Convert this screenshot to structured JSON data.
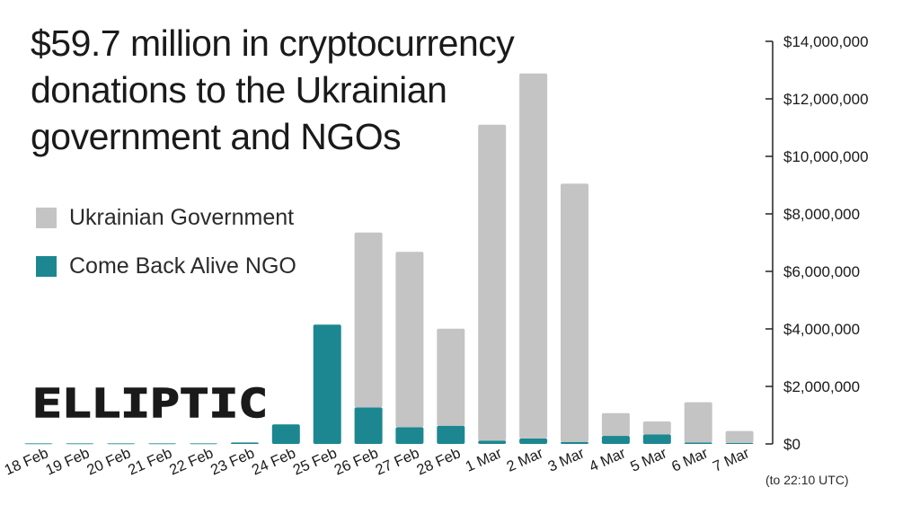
{
  "title": "$59.7 million in cryptocurrency donations to the Ukrainian government and NGOs",
  "note": "(to 22:10 UTC)",
  "logo_text": "ELLIPTIC",
  "colors": {
    "government": "#c4c4c4",
    "ngo": "#1c8790",
    "axis": "#222222",
    "text": "#1a1a1a"
  },
  "chart_data": {
    "type": "bar",
    "stacked": true,
    "categories": [
      "18 Feb",
      "19 Feb",
      "20 Feb",
      "21 Feb",
      "22 Feb",
      "23 Feb",
      "24 Feb",
      "25 Feb",
      "26 Feb",
      "27 Feb",
      "28 Feb",
      "1 Mar",
      "2 Mar",
      "3 Mar",
      "4 Mar",
      "5 Mar",
      "6 Mar",
      "7 Mar"
    ],
    "series": [
      {
        "name": "Come Back Alive NGO",
        "color": "#1c8790",
        "values": [
          20000,
          20000,
          20000,
          20000,
          20000,
          50000,
          680000,
          4150000,
          1270000,
          580000,
          630000,
          120000,
          190000,
          70000,
          280000,
          330000,
          50000,
          30000
        ]
      },
      {
        "name": "Ukrainian Government",
        "color": "#c4c4c4",
        "values": [
          0,
          0,
          0,
          0,
          0,
          0,
          0,
          0,
          6080000,
          6100000,
          3380000,
          10980000,
          12690000,
          8980000,
          790000,
          450000,
          1400000,
          420000
        ]
      }
    ],
    "ylim": [
      0,
      14000000
    ],
    "yticks": [
      0,
      2000000,
      4000000,
      6000000,
      8000000,
      10000000,
      12000000,
      14000000
    ],
    "ytick_labels": [
      "$0",
      "$2,000,000",
      "$4,000,000",
      "$6,000,000",
      "$8,000,000",
      "$10,000,000",
      "$12,000,000",
      "$14,000,000"
    ],
    "yaxis_position": "right",
    "legend_position": "left",
    "grid": false
  }
}
